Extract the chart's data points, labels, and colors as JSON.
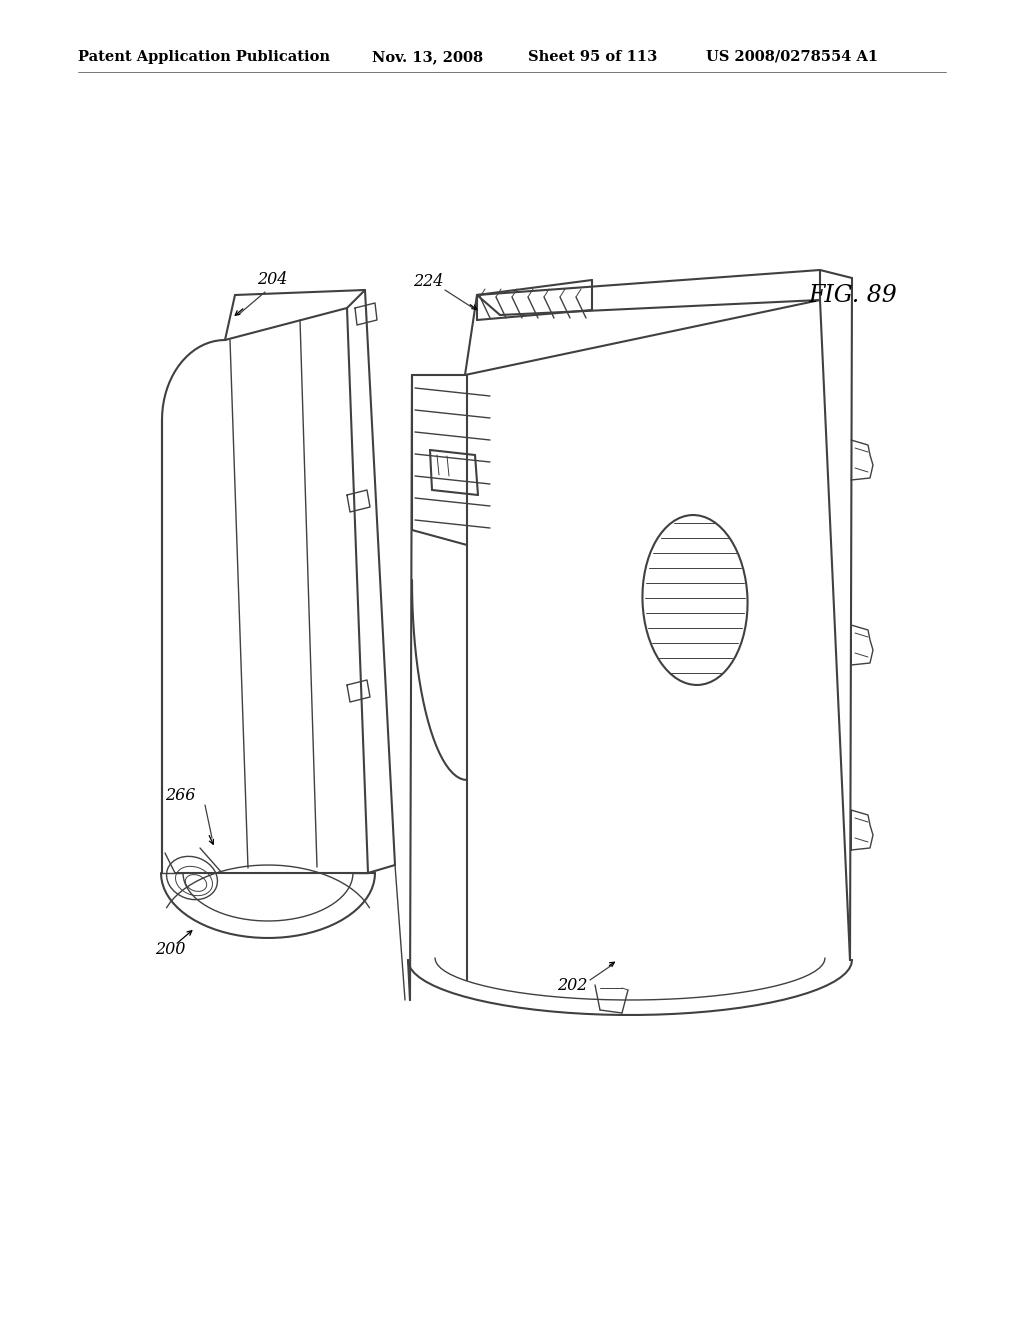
{
  "bg_color": "#ffffff",
  "line_color": "#404040",
  "header_text": "Patent Application Publication",
  "header_date": "Nov. 13, 2008",
  "header_sheet": "Sheet 95 of 113",
  "header_patent": "US 2008/0278554 A1",
  "fig_label": "FIG. 89"
}
